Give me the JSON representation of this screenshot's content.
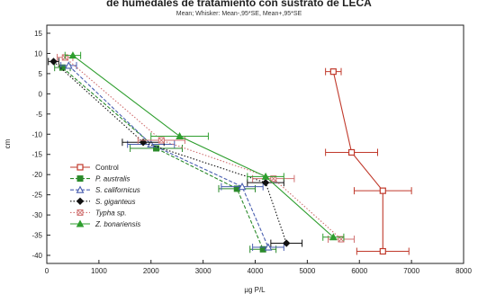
{
  "chart_data": {
    "type": "line",
    "title": "de humedales de tratamiento con sustrato de LECA",
    "subtitle": "Mean; Whisker: Mean-,95*SE, Mean+,95*SE",
    "xlabel": "µg P/L",
    "ylabel": "cm",
    "xlim": [
      0,
      8000
    ],
    "ylim": [
      -42,
      17
    ],
    "x_ticks": [
      "0",
      "1000",
      "2000",
      "3000",
      "4000",
      "5000",
      "6000",
      "7000",
      "8000"
    ],
    "y_ticks": [
      "15",
      "10",
      "5",
      "0",
      "-5",
      "-10",
      "-15",
      "-20",
      "-25",
      "-30",
      "-35",
      "-40"
    ],
    "grid": false,
    "legend_position": "lower-left",
    "series": [
      {
        "name": "Control",
        "style": "solid",
        "marker": "open-square",
        "color": "#c0392b",
        "x": [
          5500,
          5850,
          6450,
          6450
        ],
        "y": [
          5.5,
          -14.5,
          -24,
          -39
        ],
        "err": [
          150,
          500,
          550,
          500
        ]
      },
      {
        "name": "P. australis",
        "style": "dashed",
        "marker": "filled-square",
        "color": "#2a8a2a",
        "x": [
          300,
          2100,
          3650,
          4150
        ],
        "y": [
          6.5,
          -13.5,
          -23.5,
          -38.5
        ],
        "err": [
          150,
          500,
          350,
          250
        ]
      },
      {
        "name": "S. californicus",
        "style": "dashed",
        "marker": "open-triangle",
        "color": "#4a5fb0",
        "x": [
          420,
          2000,
          3750,
          4250
        ],
        "y": [
          7,
          -12.5,
          -23,
          -38
        ],
        "err": [
          150,
          450,
          400,
          300
        ]
      },
      {
        "name": "S. giganteus",
        "style": "dotted",
        "marker": "diamond",
        "color": "#111111",
        "x": [
          130,
          1850,
          4200,
          4600
        ],
        "y": [
          8,
          -12,
          -22,
          -37
        ],
        "err": [
          100,
          400,
          350,
          300
        ]
      },
      {
        "name": "Typha sp.",
        "style": "dotted",
        "marker": "x-square",
        "color": "#d07070",
        "x": [
          350,
          2200,
          4350,
          5650
        ],
        "y": [
          9,
          -11.5,
          -21,
          -36
        ],
        "err": [
          150,
          450,
          400,
          250
        ]
      },
      {
        "name": "Z. bonariensis",
        "style": "solid",
        "marker": "filled-triangle",
        "color": "#2e9e2e",
        "x": [
          500,
          2550,
          4200,
          5500
        ],
        "y": [
          9.5,
          -10.5,
          -20.5,
          -35.5
        ],
        "err": [
          150,
          550,
          350,
          200
        ]
      }
    ]
  }
}
